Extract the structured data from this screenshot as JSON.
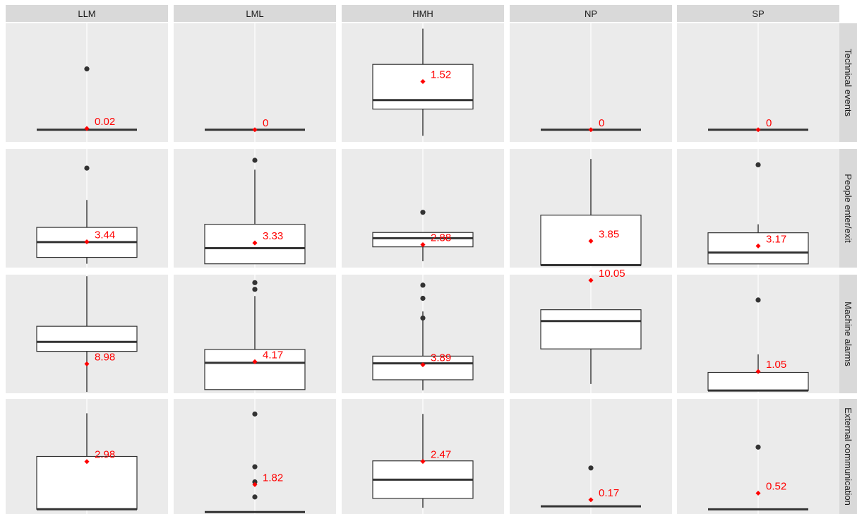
{
  "chart_data": {
    "type": "boxplot",
    "columns": [
      "LLM",
      "LML",
      "HMH",
      "NP",
      "SP"
    ],
    "rows": [
      "Technical events",
      "People enter/exit",
      "Machine alarms",
      "External communication"
    ],
    "mean_color": "#ff0000",
    "panel_background": "#ebebeb",
    "strip_background": "#d9d9d9",
    "panels": [
      [
        {
          "min": 0,
          "q1": 0,
          "median": 0,
          "q3": 0,
          "max": 0,
          "outliers": [
            1
          ],
          "mean": 0.02,
          "mean_label": "0.02"
        },
        {
          "min": 0,
          "q1": 0,
          "median": 0,
          "q3": 0,
          "max": 0,
          "outliers": [],
          "mean": 0,
          "mean_label": "0"
        },
        {
          "min": 0,
          "q1": 0.75,
          "median": 1,
          "q3": 2,
          "max": 3,
          "outliers": [],
          "mean": 1.52,
          "mean_label": "1.52"
        },
        {
          "min": 0,
          "q1": 0,
          "median": 0,
          "q3": 0,
          "max": 0,
          "outliers": [],
          "mean": 0,
          "mean_label": "0"
        },
        {
          "min": 0,
          "q1": 0,
          "median": 0,
          "q3": 0,
          "max": 0,
          "outliers": [],
          "mean": 0,
          "mean_label": "0"
        }
      ],
      [
        {
          "min": 0,
          "q1": 1,
          "median": 3.4,
          "q3": 5.7,
          "max": 10,
          "outliers": [
            15
          ],
          "mean": 3.44,
          "mean_label": "3.44"
        },
        {
          "min": 0,
          "q1": 0,
          "median": 2.5,
          "q3": 6.3,
          "max": 15,
          "outliers": [
            16.5
          ],
          "mean": 3.33,
          "mean_label": "3.33"
        },
        {
          "min": 0,
          "q1": 2.5,
          "median": 4,
          "q3": 5,
          "max": 5,
          "outliers": [
            8.5
          ],
          "mean": 2.88,
          "mean_label": "2.88"
        },
        {
          "min": 0,
          "q1": 0,
          "median": 0,
          "q3": 8,
          "max": 17,
          "outliers": [],
          "mean": 3.85,
          "mean_label": "3.85"
        },
        {
          "min": 0,
          "q1": 0,
          "median": 2,
          "q3": 5.5,
          "max": 7,
          "outliers": [
            17.5
          ],
          "mean": 3.17,
          "mean_label": "3.17"
        }
      ],
      [
        {
          "min": 0,
          "q1": 13,
          "median": 16,
          "q3": 21,
          "max": 37,
          "outliers": [],
          "mean": 8.98,
          "mean_label": "8.98"
        },
        {
          "min": 0,
          "q1": 0,
          "median": 4,
          "q3": 6,
          "max": 14,
          "outliers": [
            15,
            16
          ],
          "mean": 4.17,
          "mean_label": "4.17"
        },
        {
          "min": 0,
          "q1": 1.6,
          "median": 4.1,
          "q3": 5.2,
          "max": 12,
          "outliers": [
            11,
            14,
            16
          ],
          "mean": 3.89,
          "mean_label": "3.89"
        },
        {
          "min": 0,
          "q1": 3.4,
          "median": 6.1,
          "q3": 7.2,
          "max": 7.2,
          "outliers": [],
          "mean": 10.05,
          "mean_label": "10.05"
        },
        {
          "min": 0,
          "q1": 0,
          "median": 0,
          "q3": 1,
          "max": 2,
          "outliers": [
            5
          ],
          "mean": 1.05,
          "mean_label": "1.05"
        }
      ],
      [
        {
          "min": 0,
          "q1": 0,
          "median": 0,
          "q3": 3.3,
          "max": 6,
          "outliers": [],
          "mean": 2.98,
          "mean_label": "2.98"
        },
        {
          "min": 0,
          "q1": 0,
          "median": 0,
          "q3": 0,
          "max": 0,
          "outliers": [
            1,
            2,
            3,
            6.5
          ],
          "mean": 1.82,
          "mean_label": "1.82"
        },
        {
          "min": 0,
          "q1": 0.5,
          "median": 1.5,
          "q3": 2.5,
          "max": 5,
          "outliers": [],
          "mean": 2.47,
          "mean_label": "2.47"
        },
        {
          "min": 0,
          "q1": 0,
          "median": 0,
          "q3": 0,
          "max": 0,
          "outliers": [
            1
          ],
          "mean": 0.17,
          "mean_label": "0.17"
        },
        {
          "min": 0,
          "q1": 0,
          "median": 0,
          "q3": 0,
          "max": 0,
          "outliers": [
            2
          ],
          "mean": 0.52,
          "mean_label": "0.52"
        }
      ]
    ]
  }
}
